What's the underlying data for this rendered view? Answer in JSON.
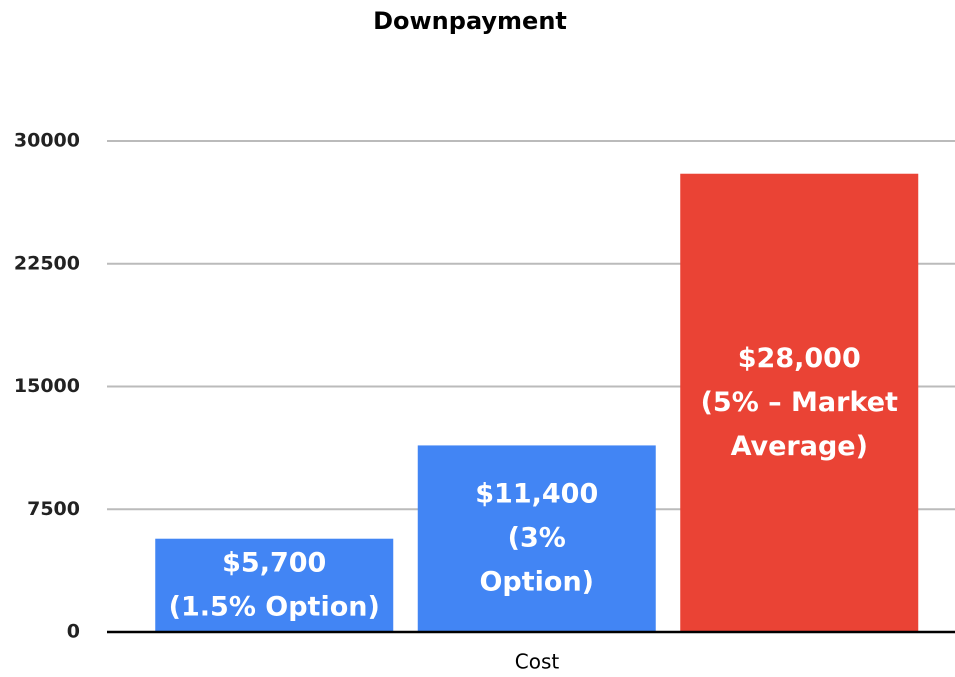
{
  "chart_data": {
    "type": "bar",
    "title": "Downpayment",
    "x_label": "Cost",
    "categories": [
      null,
      null,
      null
    ],
    "values": [
      5700,
      11400,
      28000
    ],
    "value_labels": [
      [
        "$5,700",
        "(1.5% Option)"
      ],
      [
        "$11,400",
        "(3%",
        "Option)"
      ],
      [
        "$28,000",
        "(5% – Market",
        "Average)"
      ]
    ],
    "colors": [
      "#4285f4",
      "#4285f4",
      "#ea4335"
    ],
    "ylim": [
      0,
      30000
    ],
    "yticks": [
      0,
      7500,
      15000,
      22500,
      30000
    ],
    "grid": true
  }
}
